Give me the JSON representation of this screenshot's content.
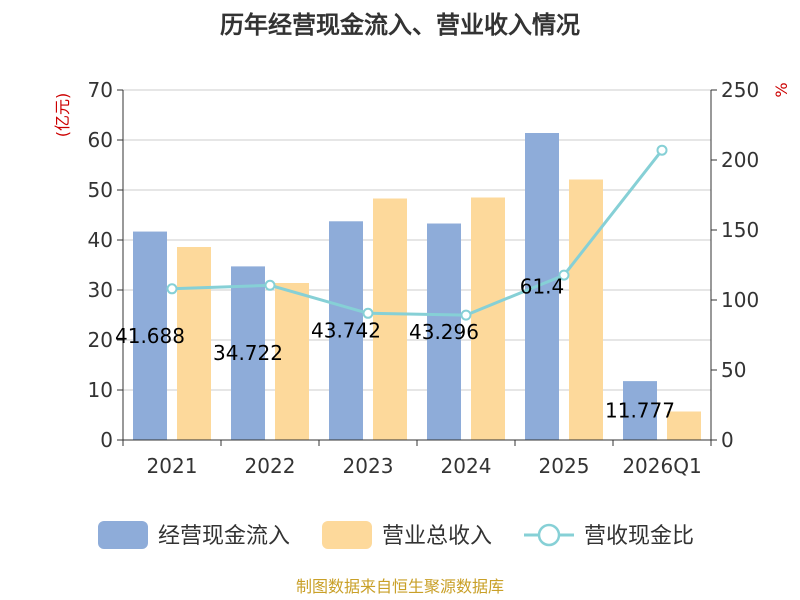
{
  "title": "历年经营现金流入、营业收入情况",
  "source": "制图数据来自恒生聚源数据库",
  "colors": {
    "cash_inflow": "#8eacd9",
    "revenue": "#fdd99b",
    "ratio": "#86d0d6",
    "grid": "#cccccc",
    "axis": "#333333"
  },
  "chart_data": {
    "type": "bar",
    "title": "历年经营现金流入、营业收入情况",
    "categories": [
      "2021",
      "2022",
      "2023",
      "2024",
      "2025",
      "2026Q1"
    ],
    "y_left": {
      "unit": "(亿元)",
      "min": 0,
      "max": 70,
      "ticks": [
        "0",
        "10",
        "20",
        "30",
        "40",
        "50",
        "60",
        "70"
      ]
    },
    "y_right": {
      "unit": "%",
      "min": 0,
      "max": 250,
      "ticks": [
        "0",
        "50",
        "100",
        "150",
        "200",
        "250"
      ]
    },
    "grid": true,
    "legend_position": "bottom",
    "series": [
      {
        "name": "经营现金流入",
        "type": "bar",
        "axis": "left",
        "values": [
          41.688,
          34.722,
          43.742,
          43.296,
          61.4,
          11.777
        ],
        "labels": [
          "41.688",
          "34.722",
          "43.742",
          "43.296",
          "61.4",
          "11.777"
        ]
      },
      {
        "name": "营业总收入",
        "type": "bar",
        "axis": "left",
        "values": [
          38.6,
          31.4,
          48.3,
          48.5,
          52.1,
          5.7
        ]
      },
      {
        "name": "营收现金比",
        "type": "line",
        "axis": "right",
        "values": [
          108,
          110.5,
          90.5,
          89.2,
          117.8,
          207
        ]
      }
    ]
  }
}
